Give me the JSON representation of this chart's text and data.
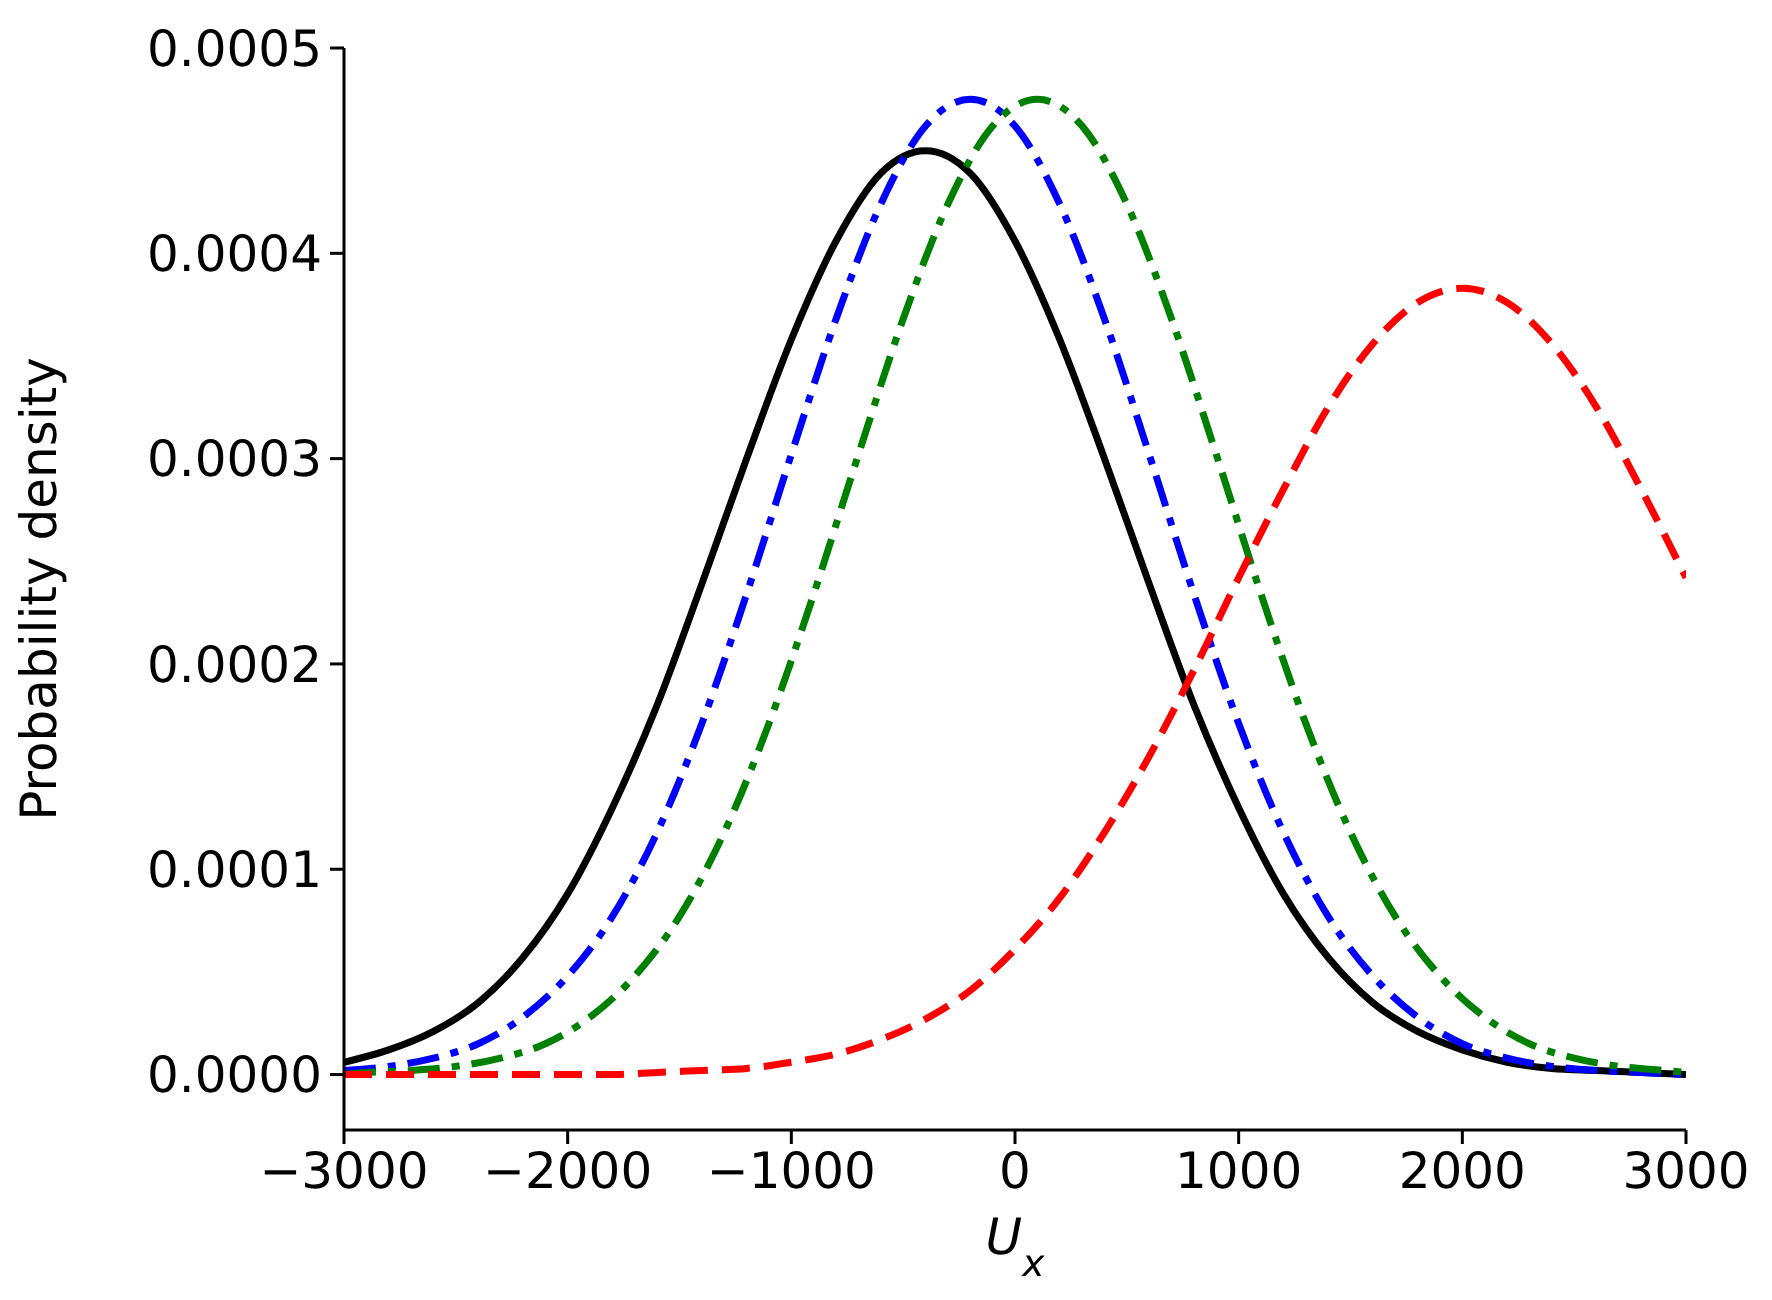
{
  "chart_data": {
    "type": "line",
    "xlabel": "U$_{x}$",
    "ylabel": "Probability density",
    "x": [
      -3000,
      -2800,
      -2600,
      -2400,
      -2200,
      -2000,
      -1800,
      -1600,
      -1400,
      -1200,
      -1000,
      -800,
      -600,
      -400,
      -200,
      0,
      200,
      400,
      600,
      800,
      1000,
      1200,
      1400,
      1600,
      1800,
      2000,
      2200,
      2400,
      2600,
      2800,
      3000
    ],
    "series": [
      {
        "color": "#000000",
        "line_style": "solid",
        "values": [
          6e-06,
          1.2e-05,
          2.1e-05,
          3.5e-05,
          5.7e-05,
          8.8e-05,
          0.00013,
          0.00018,
          0.000239,
          0.0003,
          0.000358,
          0.000406,
          0.000439,
          0.00045,
          0.000439,
          0.000406,
          0.000358,
          0.0003,
          0.000239,
          0.00018,
          0.00013,
          8.8e-05,
          5.7e-05,
          3.5e-05,
          2.1e-05,
          1.2e-05,
          6e-06,
          3e-06,
          2e-06,
          1e-06,
          0
        ]
      },
      {
        "color": "#0000ff",
        "line_style": "dashdot",
        "values": [
          2e-06,
          4e-06,
          8e-06,
          1.5e-05,
          2.8e-05,
          4.8e-05,
          7.7e-05,
          0.000118,
          0.000171,
          0.000234,
          0.000302,
          0.000368,
          0.000424,
          0.000462,
          0.000475,
          0.000462,
          0.000424,
          0.000368,
          0.000302,
          0.000234,
          0.000171,
          0.000118,
          7.7e-05,
          4.8e-05,
          2.8e-05,
          1.5e-05,
          8e-06,
          4e-06,
          2e-06,
          1e-06,
          0
        ]
      },
      {
        "color": "#008000",
        "line_style": "dashdot",
        "x": [
          -3000,
          -2900,
          -2700,
          -2500,
          -2300,
          -2100,
          -1900,
          -1700,
          -1500,
          -1300,
          -1100,
          -900,
          -700,
          -500,
          -300,
          -100,
          100,
          300,
          500,
          700,
          900,
          1100,
          1300,
          1500,
          1700,
          1900,
          2100,
          2300,
          2500,
          2700,
          2900,
          3000
        ],
        "values": [
          0,
          1e-06,
          2e-06,
          4e-06,
          8e-06,
          1.5e-05,
          2.8e-05,
          4.8e-05,
          7.7e-05,
          0.000118,
          0.000171,
          0.000234,
          0.000302,
          0.000368,
          0.000424,
          0.000462,
          0.000475,
          0.000462,
          0.000424,
          0.000368,
          0.000302,
          0.000234,
          0.000171,
          0.000118,
          7.7e-05,
          4.8e-05,
          2.8e-05,
          1.5e-05,
          8e-06,
          4e-06,
          2e-06,
          1e-06
        ]
      },
      {
        "color": "#ff0000",
        "line_style": "dashed",
        "x": [
          -3000,
          -2000,
          -1800,
          -1600,
          -1400,
          -1200,
          -1000,
          -800,
          -600,
          -400,
          -200,
          0,
          200,
          400,
          600,
          800,
          1000,
          1200,
          1400,
          1600,
          1800,
          2000,
          2200,
          2400,
          2600,
          2800,
          3000
        ],
        "values": [
          0,
          0,
          0,
          1e-06,
          2e-06,
          3e-06,
          6e-06,
          1e-05,
          1.7e-05,
          2.7e-05,
          4.1e-05,
          6.1e-05,
          8.6e-05,
          0.000118,
          0.000155,
          0.000197,
          0.000242,
          0.000285,
          0.000325,
          0.000356,
          0.000376,
          0.000383,
          0.000376,
          0.000356,
          0.000325,
          0.000285,
          0.000242
        ]
      }
    ],
    "xlim": [
      -3000,
      3000
    ],
    "xticks": [
      {
        "value": -3000,
        "label": "−3000"
      },
      {
        "value": -2000,
        "label": "−2000"
      },
      {
        "value": -1000,
        "label": "−1000"
      },
      0,
      1000,
      2000,
      3000
    ],
    "ylim": [
      -2.7e-05,
      0.0005
    ],
    "yticks": [
      {
        "value": 0,
        "label": "0.0000"
      },
      0.0001,
      0.0002,
      0.0003,
      0.0004,
      0.0005
    ],
    "grid": false,
    "legend": false,
    "marker": "none"
  }
}
